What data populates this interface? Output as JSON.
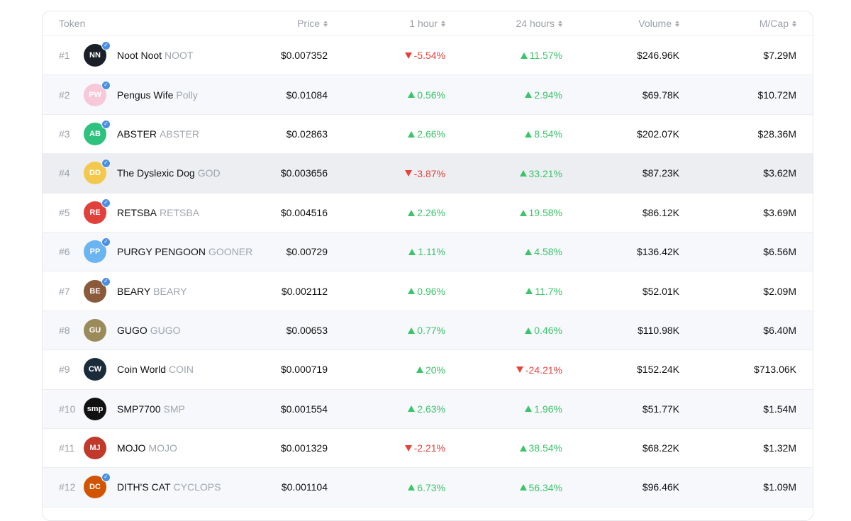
{
  "table": {
    "headers": {
      "token": "Token",
      "price": "Price",
      "hour": "1 hour",
      "day": "24 hours",
      "volume": "Volume",
      "mcap": "M/Cap"
    },
    "rows": [
      {
        "rank": "#1",
        "name": "Noot Noot",
        "symbol": "NOOT",
        "price": "$0.007352",
        "h1": "-5.54%",
        "h1_dir": "down",
        "h24": "11.57%",
        "h24_dir": "up",
        "volume": "$246.96K",
        "mcap": "$7.29M",
        "avatar_color": "#1b1f28",
        "avatar_glyph": "NN",
        "verified": true
      },
      {
        "rank": "#2",
        "name": "Pengus Wife",
        "symbol": "Polly",
        "price": "$0.01084",
        "h1": "0.56%",
        "h1_dir": "up",
        "h24": "2.94%",
        "h24_dir": "up",
        "volume": "$69.78K",
        "mcap": "$10.72M",
        "avatar_color": "#f7c9d8",
        "avatar_glyph": "PW",
        "verified": true
      },
      {
        "rank": "#3",
        "name": "ABSTER",
        "symbol": "ABSTER",
        "price": "$0.02863",
        "h1": "2.66%",
        "h1_dir": "up",
        "h24": "8.54%",
        "h24_dir": "up",
        "volume": "$202.07K",
        "mcap": "$28.36M",
        "avatar_color": "#2ec27e",
        "avatar_glyph": "AB",
        "verified": true
      },
      {
        "rank": "#4",
        "name": "The Dyslexic Dog",
        "symbol": "GOD",
        "price": "$0.003656",
        "h1": "-3.87%",
        "h1_dir": "down",
        "h24": "33.21%",
        "h24_dir": "up",
        "volume": "$87.23K",
        "mcap": "$3.62M",
        "avatar_color": "#f2c94c",
        "avatar_glyph": "DD",
        "verified": true
      },
      {
        "rank": "#5",
        "name": "RETSBA",
        "symbol": "RETSBA",
        "price": "$0.004516",
        "h1": "2.26%",
        "h1_dir": "up",
        "h24": "19.58%",
        "h24_dir": "up",
        "volume": "$86.12K",
        "mcap": "$3.69M",
        "avatar_color": "#e2403a",
        "avatar_glyph": "RE",
        "verified": true
      },
      {
        "rank": "#6",
        "name": "PURGY PENGOON",
        "symbol": "GOONER",
        "price": "$0.00729",
        "h1": "1.11%",
        "h1_dir": "up",
        "h24": "4.58%",
        "h24_dir": "up",
        "volume": "$136.42K",
        "mcap": "$6.56M",
        "avatar_color": "#6ab4f0",
        "avatar_glyph": "PP",
        "verified": true
      },
      {
        "rank": "#7",
        "name": "BEARY",
        "symbol": "BEARY",
        "price": "$0.002112",
        "h1": "0.96%",
        "h1_dir": "up",
        "h24": "11.7%",
        "h24_dir": "up",
        "volume": "$52.01K",
        "mcap": "$2.09M",
        "avatar_color": "#8a5a3b",
        "avatar_glyph": "BE",
        "verified": true
      },
      {
        "rank": "#8",
        "name": "GUGO",
        "symbol": "GUGO",
        "price": "$0.00653",
        "h1": "0.77%",
        "h1_dir": "up",
        "h24": "0.46%",
        "h24_dir": "up",
        "volume": "$110.98K",
        "mcap": "$6.40M",
        "avatar_color": "#9b8a5a",
        "avatar_glyph": "GU",
        "verified": false
      },
      {
        "rank": "#9",
        "name": "Coin World",
        "symbol": "COIN",
        "price": "$0.000719",
        "h1": "20%",
        "h1_dir": "up",
        "h24": "-24.21%",
        "h24_dir": "down",
        "volume": "$152.24K",
        "mcap": "$713.06K",
        "avatar_color": "#1a2b3a",
        "avatar_glyph": "CW",
        "verified": false
      },
      {
        "rank": "#10",
        "name": "SMP7700",
        "symbol": "SMP",
        "price": "$0.001554",
        "h1": "2.63%",
        "h1_dir": "up",
        "h24": "1.96%",
        "h24_dir": "up",
        "volume": "$51.77K",
        "mcap": "$1.54M",
        "avatar_color": "#111111",
        "avatar_glyph": "smp",
        "verified": false
      },
      {
        "rank": "#11",
        "name": "MOJO",
        "symbol": "MOJO",
        "price": "$0.001329",
        "h1": "-2.21%",
        "h1_dir": "down",
        "h24": "38.54%",
        "h24_dir": "up",
        "volume": "$68.22K",
        "mcap": "$1.32M",
        "avatar_color": "#c0392b",
        "avatar_glyph": "MJ",
        "verified": false
      },
      {
        "rank": "#12",
        "name": "DITH'S CAT",
        "symbol": "CYCLOPS",
        "price": "$0.001104",
        "h1": "6.73%",
        "h1_dir": "up",
        "h24": "56.34%",
        "h24_dir": "up",
        "volume": "$96.46K",
        "mcap": "$1.09M",
        "avatar_color": "#d35400",
        "avatar_glyph": "DC",
        "verified": true
      }
    ]
  }
}
